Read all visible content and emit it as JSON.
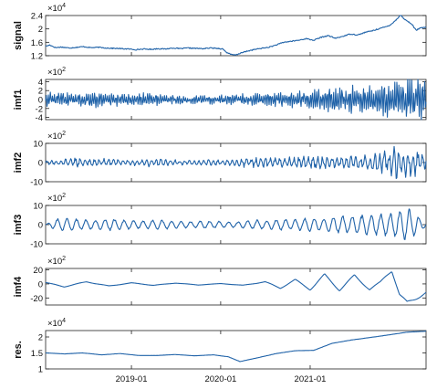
{
  "chart_data": [
    {
      "type": "line",
      "ylabel": "signal",
      "exponent_label": "×10",
      "exponent_power": "4",
      "ylim": [
        1.2,
        2.4
      ],
      "yticks": [
        1.2,
        1.6,
        2,
        2.4
      ],
      "ytick_labels": [
        "1.2",
        "1.6",
        "2",
        "2.4"
      ],
      "xlim": [
        "2018-01-15",
        "2022-04-20"
      ],
      "color": "#1f62a8",
      "series": [
        {
          "x": [
            "2018-01-15",
            "2018-02-01",
            "2018-02-25",
            "2018-03-20",
            "2018-04-20",
            "2018-05-20",
            "2018-06-20",
            "2018-07-20",
            "2018-08-20",
            "2018-09-20",
            "2018-10-20",
            "2018-11-20",
            "2018-12-20",
            "2019-01-20",
            "2019-02-20",
            "2019-03-20",
            "2019-04-20",
            "2019-05-20",
            "2019-06-20",
            "2019-07-20",
            "2019-08-20",
            "2019-09-20",
            "2019-10-20",
            "2019-11-20",
            "2019-12-20",
            "2020-01-10",
            "2020-01-25",
            "2020-02-10",
            "2020-03-01",
            "2020-03-20",
            "2020-04-15",
            "2020-05-15",
            "2020-06-15",
            "2020-07-15",
            "2020-08-15",
            "2020-09-15",
            "2020-10-15",
            "2020-11-15",
            "2020-12-15",
            "2021-01-15",
            "2021-02-15",
            "2021-03-15",
            "2021-04-15",
            "2021-05-15",
            "2021-06-15",
            "2021-07-15",
            "2021-08-15",
            "2021-09-15",
            "2021-10-15",
            "2021-11-01",
            "2021-11-20",
            "2021-12-05",
            "2021-12-20",
            "2022-01-05",
            "2022-01-20",
            "2022-02-05",
            "2022-02-20",
            "2022-03-10",
            "2022-03-25",
            "2022-04-20"
          ],
          "y": [
            1.48,
            1.52,
            1.44,
            1.46,
            1.43,
            1.45,
            1.47,
            1.44,
            1.45,
            1.43,
            1.42,
            1.41,
            1.4,
            1.38,
            1.4,
            1.39,
            1.41,
            1.4,
            1.43,
            1.41,
            1.43,
            1.42,
            1.41,
            1.43,
            1.42,
            1.4,
            1.3,
            1.24,
            1.22,
            1.27,
            1.33,
            1.38,
            1.42,
            1.45,
            1.52,
            1.6,
            1.63,
            1.66,
            1.71,
            1.66,
            1.75,
            1.8,
            1.72,
            1.78,
            1.85,
            1.82,
            1.9,
            1.95,
            2.02,
            2.05,
            2.1,
            2.18,
            2.28,
            2.42,
            2.3,
            2.22,
            2.15,
            1.96,
            2.02,
            2.05
          ]
        }
      ]
    },
    {
      "type": "line",
      "ylabel": "imf1",
      "exponent_label": "×10",
      "exponent_power": "2",
      "ylim": [
        -4.5,
        4.5
      ],
      "yticks": [
        -4,
        -2,
        0,
        2,
        4
      ],
      "ytick_labels": [
        "-4",
        "-2",
        "0",
        "2",
        "4"
      ],
      "xlim": [
        "2018-01-15",
        "2022-04-20"
      ],
      "color": "#1f62a8",
      "series": [
        {
          "x": [
            "2018-01-15",
            "2018-03-01",
            "2018-05-01",
            "2018-07-01",
            "2018-09-01",
            "2018-11-01",
            "2019-01-01",
            "2019-03-01",
            "2019-05-01",
            "2019-07-01",
            "2019-09-01",
            "2019-11-01",
            "2020-01-01",
            "2020-03-01",
            "2020-05-01",
            "2020-07-01",
            "2020-09-01",
            "2020-11-01",
            "2021-01-01",
            "2021-03-01",
            "2021-05-01",
            "2021-07-01",
            "2021-09-01",
            "2021-11-01",
            "2022-01-01",
            "2022-03-01",
            "2022-04-20"
          ],
          "y": [
            1.3,
            -1.4,
            1.2,
            -1.5,
            1.4,
            -1.2,
            1.1,
            -1.3,
            1.0,
            -0.9,
            0.8,
            -0.9,
            0.8,
            -1.0,
            1.1,
            -1.2,
            1.4,
            -1.6,
            2.0,
            -2.3,
            2.6,
            -2.8,
            3.2,
            -3.5,
            3.8,
            -4.2,
            4.0
          ]
        }
      ]
    },
    {
      "type": "line",
      "ylabel": "imf2",
      "exponent_label": "×10",
      "exponent_power": "2",
      "ylim": [
        -10,
        10
      ],
      "yticks": [
        -10,
        0,
        10
      ],
      "ytick_labels": [
        "-10",
        "0",
        "10"
      ],
      "xlim": [
        "2018-01-15",
        "2022-04-20"
      ],
      "color": "#1f62a8",
      "series": [
        {
          "x": [
            "2018-01-15",
            "2018-03-15",
            "2018-05-15",
            "2018-07-15",
            "2018-09-15",
            "2018-11-15",
            "2019-01-15",
            "2019-03-15",
            "2019-05-15",
            "2019-07-15",
            "2019-09-15",
            "2019-11-15",
            "2020-01-15",
            "2020-03-15",
            "2020-05-15",
            "2020-07-15",
            "2020-09-15",
            "2020-11-15",
            "2021-01-15",
            "2021-03-15",
            "2021-05-15",
            "2021-07-15",
            "2021-09-15",
            "2021-10-15",
            "2021-11-15",
            "2021-12-10",
            "2022-01-05",
            "2022-02-01",
            "2022-03-01",
            "2022-04-20"
          ],
          "y": [
            0.8,
            -1.2,
            2.4,
            -1.6,
            1.8,
            -1.4,
            1.2,
            -1.6,
            1.5,
            -1.2,
            1.0,
            -1.4,
            1.2,
            -1.8,
            2.0,
            -2.4,
            2.2,
            -2.8,
            3.0,
            -2.6,
            2.8,
            -3.2,
            3.6,
            -5.0,
            4.6,
            7.4,
            -8.2,
            6.0,
            -5.8,
            3.5
          ]
        }
      ]
    },
    {
      "type": "line",
      "ylabel": "imf3",
      "exponent_label": "×10",
      "exponent_power": "2",
      "ylim": [
        -10,
        10
      ],
      "yticks": [
        -10,
        0,
        10
      ],
      "ytick_labels": [
        "-10",
        "0",
        "10"
      ],
      "xlim": [
        "2018-01-15",
        "2022-04-20"
      ],
      "color": "#1f62a8",
      "series": [
        {
          "x": [
            "2018-01-15",
            "2018-03-01",
            "2018-04-15",
            "2018-06-01",
            "2018-07-15",
            "2018-09-01",
            "2018-10-15",
            "2018-12-01",
            "2019-01-15",
            "2019-03-01",
            "2019-04-15",
            "2019-06-01",
            "2019-07-15",
            "2019-09-01",
            "2019-10-15",
            "2019-12-01",
            "2020-01-15",
            "2020-03-01",
            "2020-04-15",
            "2020-06-01",
            "2020-07-15",
            "2020-09-01",
            "2020-10-15",
            "2020-12-01",
            "2021-01-15",
            "2021-03-01",
            "2021-04-15",
            "2021-06-01",
            "2021-07-15",
            "2021-09-01",
            "2021-10-15",
            "2021-11-15",
            "2021-12-15",
            "2022-01-15",
            "2022-02-10",
            "2022-03-10",
            "2022-04-20"
          ],
          "y": [
            0,
            3.2,
            -3.8,
            3.0,
            -2.6,
            2.8,
            -3.4,
            2.6,
            -2.4,
            2.2,
            -2.8,
            2.4,
            -2.0,
            1.8,
            -2.2,
            2.0,
            -1.8,
            1.6,
            -2.2,
            2.6,
            -2.4,
            3.0,
            -2.8,
            3.4,
            -4.0,
            3.6,
            -4.6,
            4.8,
            -5.2,
            5.6,
            -6.0,
            6.4,
            -7.0,
            8.6,
            -9.0,
            6.0,
            1.0
          ]
        }
      ]
    },
    {
      "type": "line",
      "ylabel": "imf4",
      "exponent_label": "×10",
      "exponent_power": "2",
      "ylim": [
        -30,
        22
      ],
      "yticks": [
        -20,
        0,
        20
      ],
      "ytick_labels": [
        "-20",
        "0",
        "20"
      ],
      "xlim": [
        "2018-01-15",
        "2022-04-20"
      ],
      "color": "#1f62a8",
      "series": [
        {
          "x": [
            "2018-01-15",
            "2018-04-01",
            "2018-07-01",
            "2018-10-01",
            "2019-01-01",
            "2019-04-01",
            "2019-07-01",
            "2019-10-01",
            "2020-01-01",
            "2020-04-01",
            "2020-07-01",
            "2020-09-01",
            "2020-11-01",
            "2021-01-01",
            "2021-03-01",
            "2021-05-01",
            "2021-07-01",
            "2021-09-01",
            "2021-10-15",
            "2021-12-01",
            "2022-01-01",
            "2022-02-01",
            "2022-03-01",
            "2022-04-20"
          ],
          "y": [
            2,
            -4,
            3,
            -3,
            1.5,
            -2,
            1.2,
            -1.5,
            0.5,
            -2,
            3,
            -6,
            6,
            -8,
            13,
            -9,
            12,
            -8,
            3,
            20,
            -15,
            -28,
            -22,
            -12
          ]
        }
      ]
    },
    {
      "type": "line",
      "ylabel": "res.",
      "exponent_label": "×10",
      "exponent_power": "4",
      "ylim": [
        1,
        2.2
      ],
      "yticks": [
        1,
        1.5,
        2
      ],
      "ytick_labels": [
        "1",
        "1.5",
        "2"
      ],
      "xlim": [
        "2018-01-15",
        "2022-04-20"
      ],
      "xticks": [
        "2019-01-01",
        "2020-01-01",
        "2021-01-01"
      ],
      "xtick_labels": [
        "2019-01",
        "2020-01",
        "2021-01"
      ],
      "color": "#1f62a8",
      "series": [
        {
          "x": [
            "2018-01-15",
            "2018-04-01",
            "2018-06-15",
            "2018-09-01",
            "2018-11-15",
            "2019-02-01",
            "2019-04-15",
            "2019-07-01",
            "2019-09-15",
            "2019-12-01",
            "2020-02-01",
            "2020-03-20",
            "2020-06-01",
            "2020-08-15",
            "2020-11-01",
            "2021-01-15",
            "2021-04-01",
            "2021-06-15",
            "2021-09-01",
            "2021-11-15",
            "2022-02-01",
            "2022-04-20"
          ],
          "y": [
            1.5,
            1.47,
            1.5,
            1.44,
            1.48,
            1.42,
            1.42,
            1.45,
            1.41,
            1.44,
            1.38,
            1.23,
            1.35,
            1.48,
            1.57,
            1.58,
            1.8,
            1.9,
            1.98,
            2.06,
            2.15,
            2.18
          ]
        }
      ]
    }
  ]
}
